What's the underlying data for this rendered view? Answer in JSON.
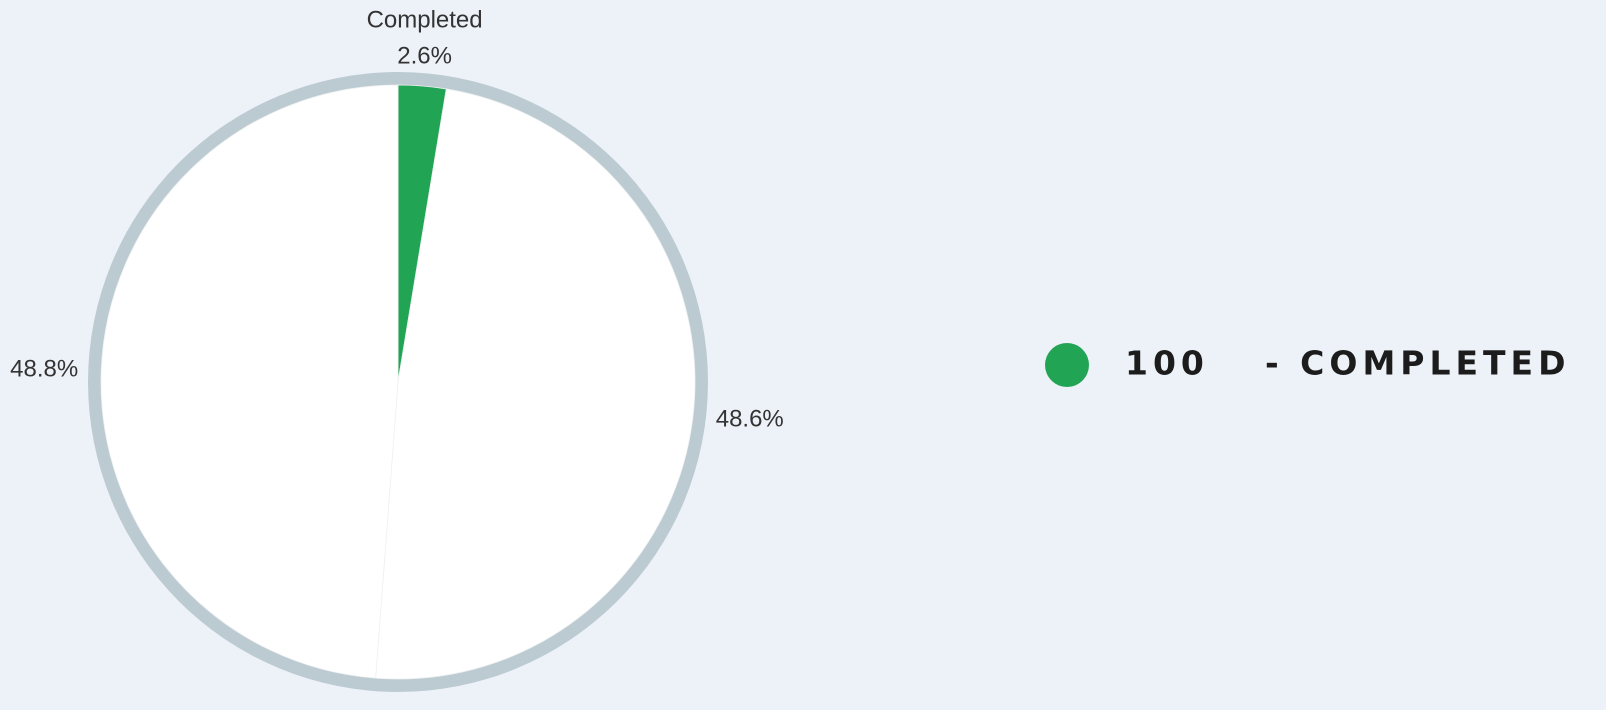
{
  "chart_data": {
    "type": "pie",
    "categories": [
      "Completed",
      null,
      null
    ],
    "values": [
      2.6,
      48.6,
      48.8
    ],
    "value_labels": [
      "2.6%",
      "48.6%",
      "48.8%"
    ],
    "colors": [
      "#22a455",
      "#ffffff",
      "#ffffff"
    ],
    "ring_color": "#bccbd1",
    "legend": [
      {
        "value": 100,
        "label": "- COMPLETED",
        "color": "#22a455"
      }
    ]
  }
}
